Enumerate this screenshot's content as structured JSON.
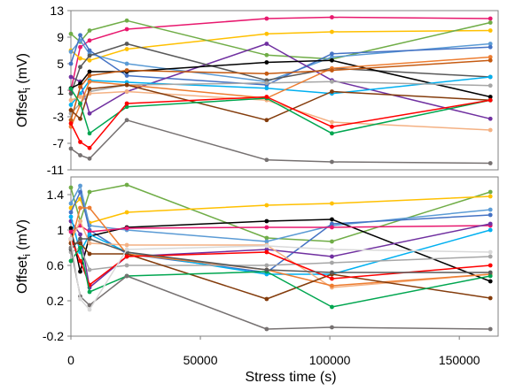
{
  "chart_data": [
    {
      "type": "line",
      "panel": "top",
      "ylabel": "Offset",
      "ylabel_subscript": "i",
      "ylabel_unit": " (mV)",
      "ylim": [
        -11,
        13
      ],
      "yticks": [
        -11,
        -7,
        -3,
        1,
        5,
        9,
        13
      ],
      "ytick_labels": [
        "-11",
        "-7",
        "-3",
        "1",
        "5",
        "9",
        "13"
      ],
      "xlim": [
        0,
        165000
      ],
      "grid": false,
      "x": [
        0,
        3600,
        7200,
        21600,
        75600,
        100800,
        162000
      ],
      "series": [
        {
          "color": "#e8186e",
          "values": [
            1,
            7.5,
            8.5,
            10.2,
            11.8,
            12,
            11.8
          ]
        },
        {
          "color": "#ffc000",
          "values": [
            7,
            5.8,
            5.5,
            7.2,
            9.5,
            9.8,
            10
          ]
        },
        {
          "color": "#70ad47",
          "values": [
            9.5,
            8.3,
            10,
            11.5,
            6.3,
            5.7,
            11.2
          ]
        },
        {
          "color": "#5b9bd5",
          "values": [
            6.8,
            8.5,
            6.5,
            5,
            2.3,
            6,
            8
          ]
        },
        {
          "color": "#4472c4",
          "values": [
            5,
            9.3,
            7,
            3.2,
            1.8,
            6.5,
            7.5
          ]
        },
        {
          "color": "#7030a0",
          "values": [
            3,
            2.3,
            -2.5,
            0.8,
            8,
            2.5,
            -3.3
          ]
        },
        {
          "color": "#595959",
          "values": [
            0.5,
            4.5,
            6.2,
            8,
            2.5,
            4.3,
            3
          ]
        },
        {
          "color": "#000000",
          "values": [
            1.3,
            2,
            3.8,
            3.8,
            5.2,
            5.5,
            0
          ]
        },
        {
          "color": "#00b0f0",
          "values": [
            -1.2,
            0.5,
            2.5,
            2.2,
            1.3,
            0.5,
            3
          ]
        },
        {
          "color": "#a6a6a6",
          "values": [
            -2.5,
            -1,
            0.8,
            1.8,
            2.1,
            2.3,
            1.7
          ]
        },
        {
          "color": "#f4b183",
          "values": [
            -0.5,
            0,
            0.5,
            0.8,
            -0.5,
            -3.8,
            -5
          ]
        },
        {
          "color": "#ed7d31",
          "values": [
            -4.5,
            -1.2,
            2.3,
            1.8,
            -0.2,
            4.3,
            6
          ]
        },
        {
          "color": "#c55a11",
          "values": [
            -3.5,
            1.5,
            3.2,
            4,
            3.5,
            4,
            5.5
          ]
        },
        {
          "color": "#843c0c",
          "values": [
            -2,
            -3.3,
            1.2,
            1.8,
            -3.5,
            0.8,
            -0.5
          ]
        },
        {
          "color": "#00a650",
          "values": [
            1.2,
            -1,
            -5.5,
            -1.5,
            -0.2,
            -5.5,
            -0.5
          ]
        },
        {
          "color": "#ff0000",
          "values": [
            -4,
            -6.8,
            -7.7,
            -1,
            0,
            -4.5,
            -0.5
          ]
        },
        {
          "color": "#767171",
          "values": [
            -7.8,
            -8.8,
            -9.3,
            -3.5,
            -9.5,
            -9.8,
            -10
          ]
        }
      ]
    },
    {
      "type": "line",
      "panel": "bottom",
      "ylabel": "Offset",
      "ylabel_subscript": "i",
      "ylabel_unit": " (mV)",
      "ylim": [
        -0.2,
        1.6
      ],
      "yticks": [
        -0.2,
        0.2,
        0.6,
        1,
        1.4
      ],
      "ytick_labels": [
        "-0.2",
        "0.2",
        "0.6",
        "1",
        "1.4"
      ],
      "xlabel": "Stress time (s)",
      "xlim": [
        0,
        165000
      ],
      "xticks": [
        0,
        50000,
        100000,
        150000
      ],
      "xtick_labels": [
        "0",
        "50000",
        "100000",
        "150000"
      ],
      "grid": false,
      "x": [
        0,
        3600,
        7200,
        21600,
        75600,
        100800,
        162000
      ],
      "series": [
        {
          "color": "#70ad47",
          "values": [
            1.48,
            1.1,
            1.43,
            1.51,
            0.91,
            0.87,
            1.43
          ]
        },
        {
          "color": "#ffc000",
          "values": [
            1.25,
            1.35,
            1.08,
            1.2,
            1.28,
            1.3,
            1.38
          ]
        },
        {
          "color": "#5b9bd5",
          "values": [
            1.3,
            1.5,
            1.05,
            1.0,
            0.87,
            1.05,
            1.23
          ]
        },
        {
          "color": "#4472c4",
          "values": [
            1.2,
            1.43,
            1.0,
            0.73,
            0.52,
            1.07,
            1.17
          ]
        },
        {
          "color": "#000000",
          "values": [
            1.02,
            0.53,
            0.93,
            1.03,
            1.1,
            1.12,
            0.42
          ]
        },
        {
          "color": "#e8186e",
          "values": [
            0.98,
            1.05,
            0.98,
            1.02,
            1.03,
            1.03,
            1.05
          ]
        },
        {
          "color": "#7030a0",
          "values": [
            1.1,
            0.95,
            0.35,
            0.7,
            0.78,
            0.7,
            1.07
          ]
        },
        {
          "color": "#00b0f0",
          "values": [
            1.15,
            0.75,
            0.95,
            0.75,
            0.5,
            0.5,
            1.0
          ]
        },
        {
          "color": "#f4b183",
          "values": [
            0.88,
            1.1,
            0.85,
            0.83,
            0.83,
            0.35,
            0.5
          ]
        },
        {
          "color": "#ed7d31",
          "values": [
            0.85,
            1.25,
            1.25,
            0.73,
            0.55,
            0.37,
            0.5
          ]
        },
        {
          "color": "#a6a6a6",
          "values": [
            0.75,
            0.8,
            0.55,
            0.6,
            0.6,
            0.63,
            0.7
          ]
        },
        {
          "color": "#843c0c",
          "values": [
            0.85,
            0.85,
            0.73,
            0.73,
            0.22,
            0.5,
            0.23
          ]
        },
        {
          "color": "#ff0000",
          "values": [
            0.9,
            0.65,
            0.38,
            0.7,
            0.75,
            0.45,
            0.6
          ]
        },
        {
          "color": "#00a650",
          "values": [
            0.65,
            0.8,
            0.3,
            0.48,
            0.53,
            0.13,
            0.48
          ]
        },
        {
          "color": "#595959",
          "values": [
            0.78,
            0.9,
            0.9,
            0.75,
            0.55,
            0.52,
            0.52
          ]
        },
        {
          "color": "#767171",
          "values": [
            0.8,
            0.25,
            0.15,
            0.48,
            -0.12,
            -0.1,
            -0.12
          ]
        },
        {
          "color": "#d9d9d9",
          "values": [
            0.9,
            0.22,
            0.1,
            0.78,
            0.82,
            0.78,
            0.75
          ]
        }
      ]
    }
  ]
}
